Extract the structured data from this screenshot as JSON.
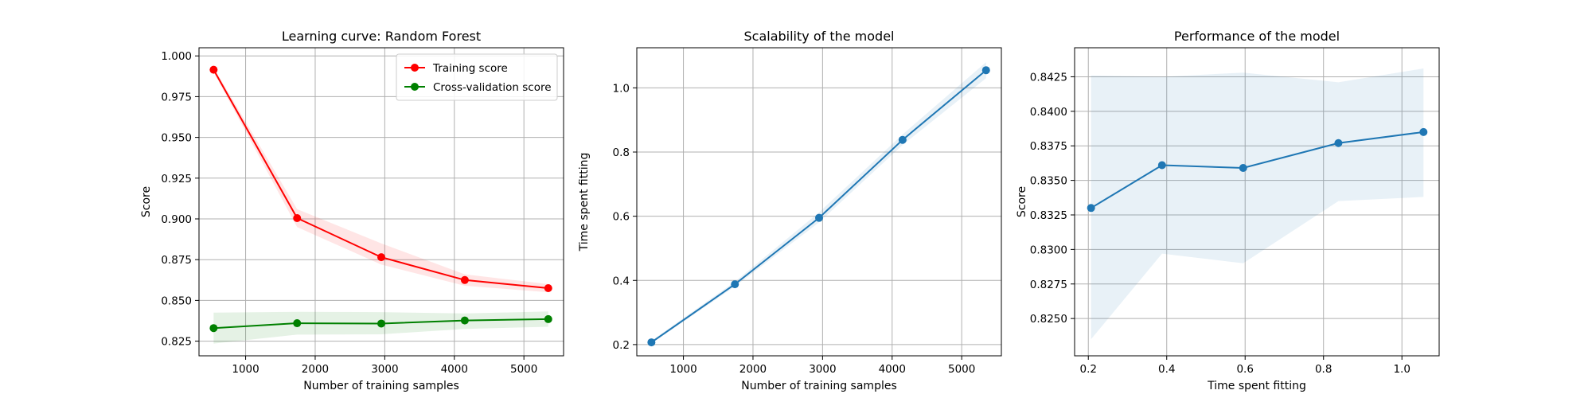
{
  "chart_data": [
    {
      "type": "line",
      "title": "Learning curve: Random Forest",
      "xlabel": "Number of training samples",
      "ylabel": "Score",
      "xlim": [
        330,
        5570
      ],
      "ylim": [
        0.816,
        1.005
      ],
      "xticks": [
        1000,
        2000,
        3000,
        4000,
        5000
      ],
      "yticks": [
        0.825,
        0.85,
        0.875,
        0.9,
        0.925,
        0.95,
        0.975,
        1.0
      ],
      "ytick_decimals": 3,
      "grid": true,
      "legend": "upper right",
      "x": [
        540,
        1740,
        2950,
        4150,
        5350
      ],
      "series": [
        {
          "name": "Training score",
          "color": "#ff0000",
          "values": [
            0.9915,
            0.9005,
            0.8765,
            0.8625,
            0.8575
          ],
          "band_lower": [
            0.99,
            0.895,
            0.872,
            0.859,
            0.855
          ],
          "band_upper": [
            0.993,
            0.906,
            0.885,
            0.866,
            0.86
          ]
        },
        {
          "name": "Cross-validation score",
          "color": "#008000",
          "values": [
            0.833,
            0.836,
            0.8358,
            0.8377,
            0.8385
          ],
          "band_lower": [
            0.8235,
            0.829,
            0.8292,
            0.8325,
            0.8338
          ],
          "band_upper": [
            0.8425,
            0.843,
            0.8428,
            0.842,
            0.8432
          ]
        }
      ]
    },
    {
      "type": "line",
      "title": "Scalability of the model",
      "xlabel": "Number of training samples",
      "ylabel": "Time spent fitting",
      "xlim": [
        330,
        5570
      ],
      "ylim": [
        0.165,
        1.125
      ],
      "xticks": [
        1000,
        2000,
        3000,
        4000,
        5000
      ],
      "yticks": [
        0.2,
        0.4,
        0.6,
        0.8,
        1.0
      ],
      "ytick_decimals": 1,
      "grid": true,
      "x": [
        540,
        1740,
        2950,
        4150,
        5350
      ],
      "series": [
        {
          "color": "#1f77b4",
          "values": [
            0.207,
            0.388,
            0.595,
            0.838,
            1.055
          ],
          "band_lower": [
            0.203,
            0.381,
            0.581,
            0.822,
            1.03
          ],
          "band_upper": [
            0.212,
            0.396,
            0.612,
            0.855,
            1.08
          ]
        }
      ]
    },
    {
      "type": "line",
      "title": "Performance of the model",
      "xlabel": "Time spent fitting",
      "ylabel": "Score",
      "xlim": [
        0.165,
        1.095
      ],
      "ylim": [
        0.8223,
        0.8446
      ],
      "xticks": [
        0.2,
        0.4,
        0.6,
        0.8,
        1.0
      ],
      "xtick_decimals": 1,
      "yticks": [
        0.825,
        0.8275,
        0.83,
        0.8325,
        0.835,
        0.8375,
        0.84,
        0.8425
      ],
      "ytick_decimals": 4,
      "grid": true,
      "x": [
        0.207,
        0.388,
        0.595,
        0.838,
        1.055
      ],
      "series": [
        {
          "color": "#1f77b4",
          "values": [
            0.833,
            0.8361,
            0.8359,
            0.8377,
            0.8385
          ],
          "band_lower": [
            0.8235,
            0.8297,
            0.829,
            0.8335,
            0.8338
          ],
          "band_upper": [
            0.8426,
            0.8425,
            0.8428,
            0.8421,
            0.8431
          ]
        }
      ]
    }
  ]
}
